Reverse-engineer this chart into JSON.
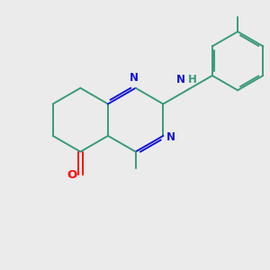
{
  "bg_color": "#ebebeb",
  "bond_color": "#3a9a7a",
  "N_color": "#1414d4",
  "O_color": "#ff0000",
  "NH_H_color": "#3a9a7a",
  "NH_N_color": "#1414d4",
  "label_N": "N",
  "label_NH": "NH",
  "label_O": "O",
  "figsize": [
    3.0,
    3.0
  ],
  "dpi": 100
}
